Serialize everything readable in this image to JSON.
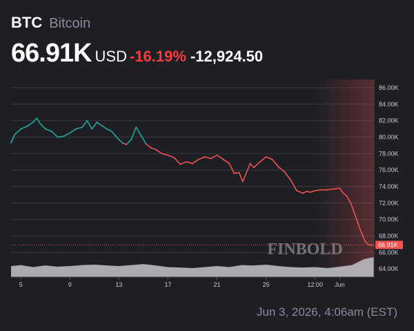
{
  "header": {
    "ticker": "BTC",
    "asset_name": "Bitcoin",
    "price": "66.91K",
    "currency": "USD",
    "change_pct": "-16.19%",
    "change_abs": "-12,924.50",
    "timestamp": "Jun 3, 2026, 4:06am (EST)",
    "watermark": "FINBOLD"
  },
  "colors": {
    "up": "#26a69a",
    "down": "#ef5350",
    "pct_text": "#ff3b3b",
    "volume": "#c2c4c9"
  },
  "chart_data": {
    "type": "line",
    "ylim": [
      63000,
      87000
    ],
    "y_ticks": [
      "86.00K",
      "84.00K",
      "82.00K",
      "80.00K",
      "78.00K",
      "76.00K",
      "74.00K",
      "72.00K",
      "70.00K",
      "68.00K",
      "66.00K",
      "64.00K"
    ],
    "y_tick_values": [
      86000,
      84000,
      82000,
      80000,
      78000,
      76000,
      74000,
      72000,
      70000,
      68000,
      66000,
      64000
    ],
    "x_ticks": [
      "5",
      "9",
      "13",
      "17",
      "21",
      "25",
      "12:00",
      "Jun"
    ],
    "x_tick_values": [
      5,
      9,
      13,
      17,
      21,
      25,
      29,
      31
    ],
    "last_price_label": "66.91K",
    "last_price_value": 66910,
    "series": [
      {
        "x": [
          4.2,
          4.5,
          5,
          5.5,
          6,
          6.3,
          6.6,
          7,
          7.5,
          8,
          8.5,
          9,
          9.5,
          10,
          10.4,
          10.8,
          11.2,
          11.6,
          12,
          12.4,
          12.7,
          13,
          13.3,
          13.6,
          14,
          14.4,
          14.8,
          15.2,
          15.6,
          16,
          16.5,
          17,
          17.5,
          18,
          18.5,
          19,
          19.5,
          20,
          20.5,
          21,
          21.5,
          22,
          22.4,
          22.8,
          23.1,
          23.4,
          23.7,
          24,
          24.5,
          25,
          25.5,
          26,
          26.5,
          27,
          27.5,
          28,
          28.3,
          28.6,
          29,
          29.5,
          30,
          30.5,
          31,
          31.3,
          31.6,
          31.9,
          32.2,
          32.5,
          32.8,
          33.1,
          33.4,
          33.8
        ],
        "values": [
          79300,
          80300,
          81000,
          81300,
          81800,
          82300,
          81600,
          81000,
          80700,
          80000,
          80100,
          80500,
          81000,
          81200,
          82000,
          81000,
          81800,
          81400,
          81000,
          80700,
          80200,
          79700,
          79300,
          79100,
          79700,
          81200,
          80200,
          79200,
          78700,
          78500,
          78000,
          77800,
          77500,
          76700,
          77000,
          76800,
          77300,
          77600,
          77400,
          77800,
          77300,
          76800,
          75600,
          75700,
          74600,
          75700,
          76800,
          76300,
          77000,
          77600,
          77300,
          76400,
          75800,
          74800,
          73500,
          73200,
          73400,
          73300,
          73500,
          73600,
          73600,
          73700,
          73800,
          73200,
          72800,
          72000,
          70800,
          69500,
          68300,
          67300,
          66900,
          66910
        ]
      }
    ],
    "volume": {
      "x": [
        4.2,
        5,
        6,
        7,
        8,
        9,
        10,
        11,
        12,
        13,
        14,
        15,
        16,
        17,
        18,
        19,
        20,
        21,
        22,
        23,
        24,
        25,
        26,
        27,
        28,
        29,
        30,
        31,
        32,
        33,
        33.8
      ],
      "values": [
        0.55,
        0.6,
        0.5,
        0.58,
        0.52,
        0.55,
        0.6,
        0.62,
        0.58,
        0.55,
        0.6,
        0.65,
        0.58,
        0.5,
        0.48,
        0.45,
        0.5,
        0.55,
        0.5,
        0.6,
        0.58,
        0.62,
        0.55,
        0.5,
        0.48,
        0.5,
        0.45,
        0.52,
        0.6,
        0.9,
        1.0
      ]
    }
  }
}
